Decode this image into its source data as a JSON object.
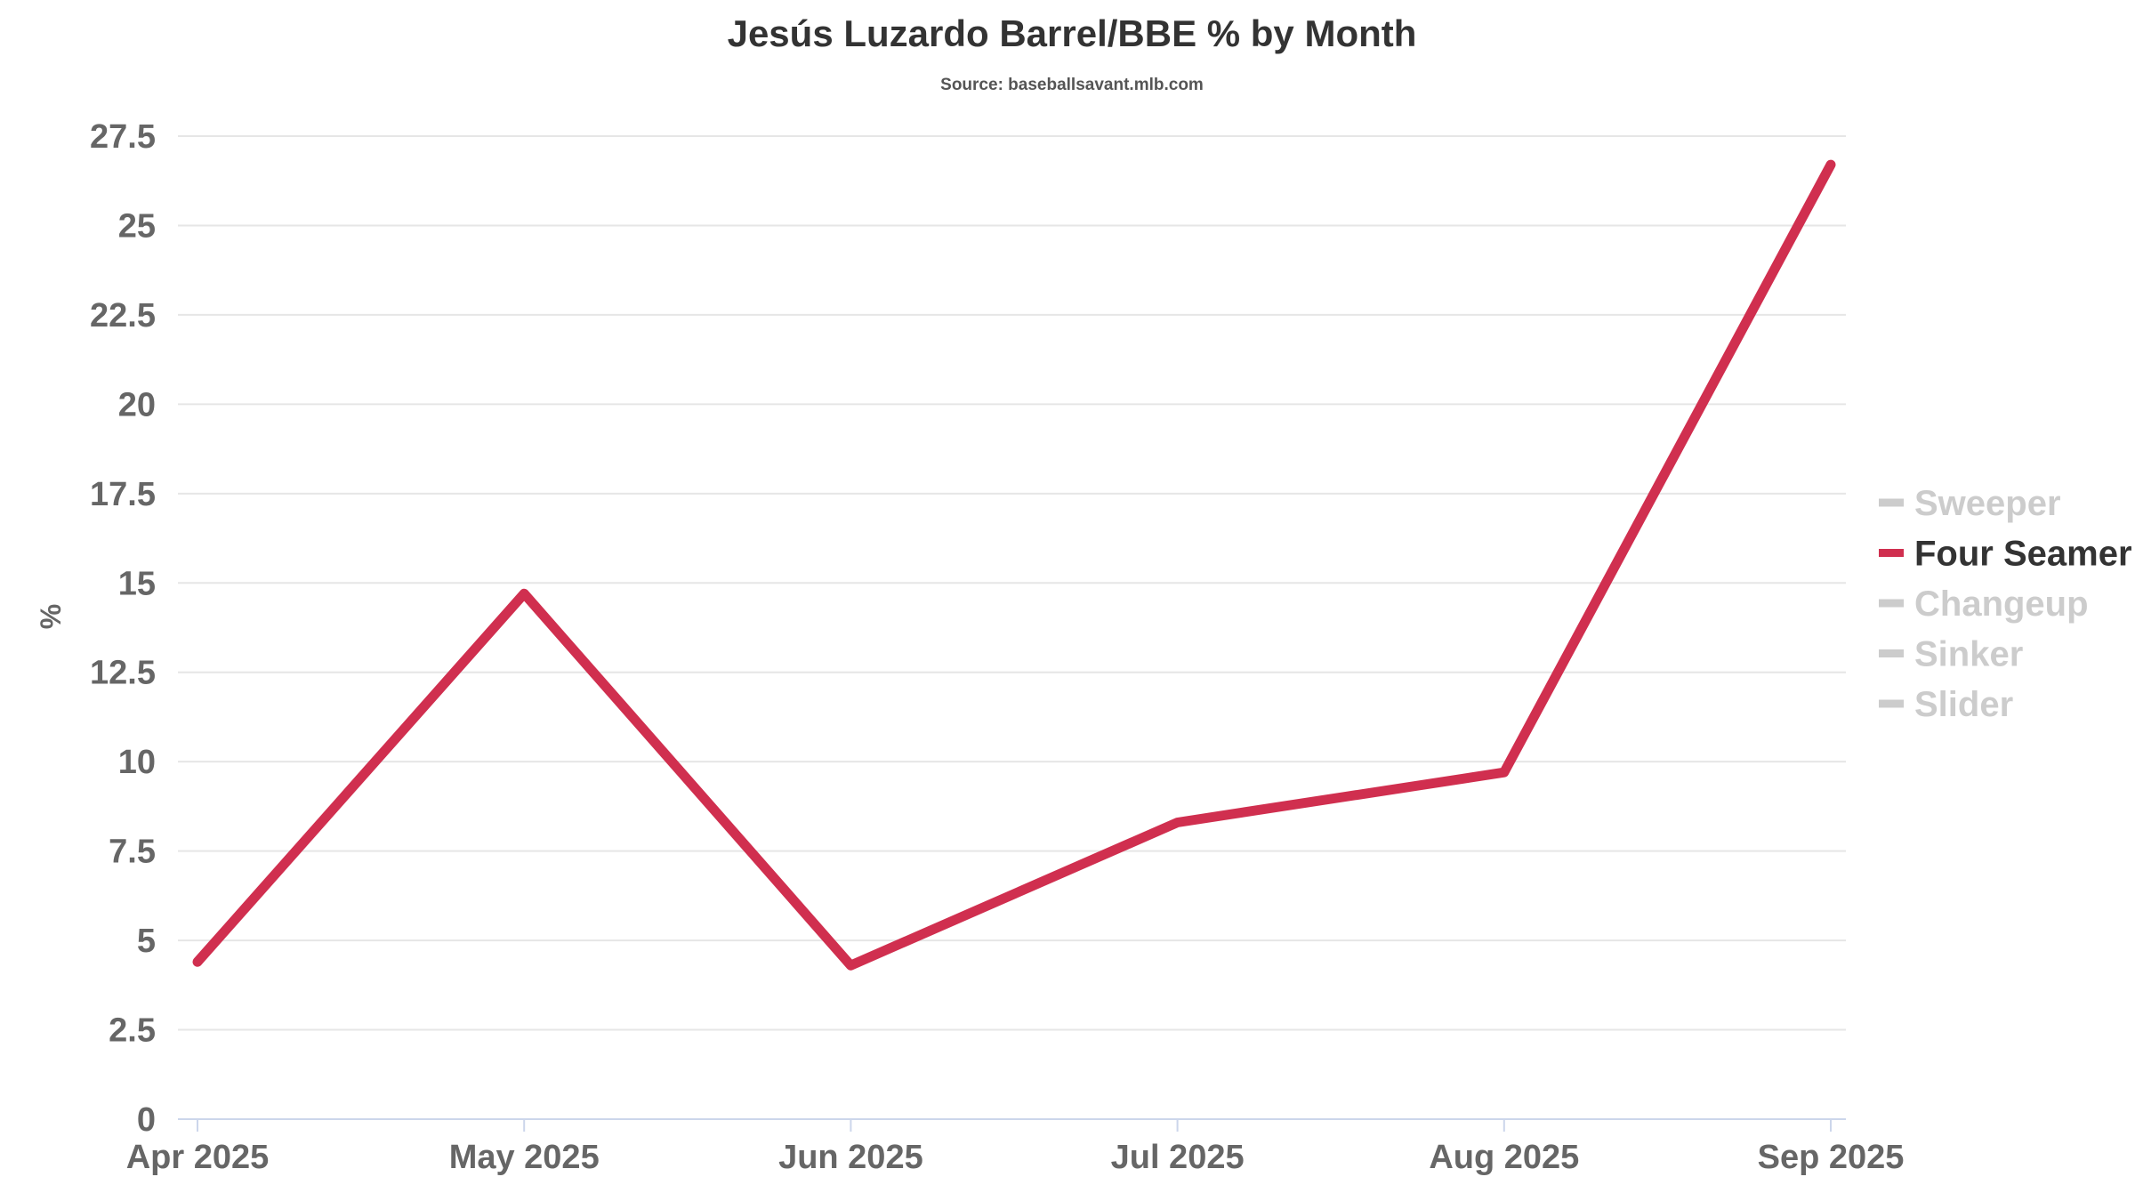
{
  "colors": {
    "active_series": "#d02f4f",
    "inactive_series": "#cccccc",
    "grid": "#e6e6e6",
    "axis": "#ccd6eb",
    "tick_text": "#666666",
    "title_text": "#333333"
  },
  "chart_data": {
    "type": "line",
    "title": "Jesús Luzardo Barrel/BBE % by Month",
    "subtitle": "Source: baseballsavant.mlb.com",
    "xlabel": "",
    "ylabel": "%",
    "categories": [
      "Apr 2025",
      "May 2025",
      "Jun 2025",
      "Jul 2025",
      "Aug 2025",
      "Sep 2025"
    ],
    "ylim": [
      0,
      27.5
    ],
    "yticks": [
      0,
      2.5,
      5,
      7.5,
      10,
      12.5,
      15,
      17.5,
      20,
      22.5,
      25,
      27.5
    ],
    "ytick_labels": [
      "0",
      "2.5",
      "5",
      "7.5",
      "10",
      "12.5",
      "15",
      "17.5",
      "20",
      "22.5",
      "25",
      "27.5"
    ],
    "grid": true,
    "legend_position": "right",
    "legend": [
      {
        "name": "Sweeper",
        "active": false
      },
      {
        "name": "Four Seamer",
        "active": true
      },
      {
        "name": "Changeup",
        "active": false
      },
      {
        "name": "Sinker",
        "active": false
      },
      {
        "name": "Slider",
        "active": false
      }
    ],
    "series": [
      {
        "name": "Four Seamer",
        "values": [
          4.4,
          14.7,
          4.3,
          8.3,
          9.7,
          26.7
        ]
      }
    ]
  }
}
